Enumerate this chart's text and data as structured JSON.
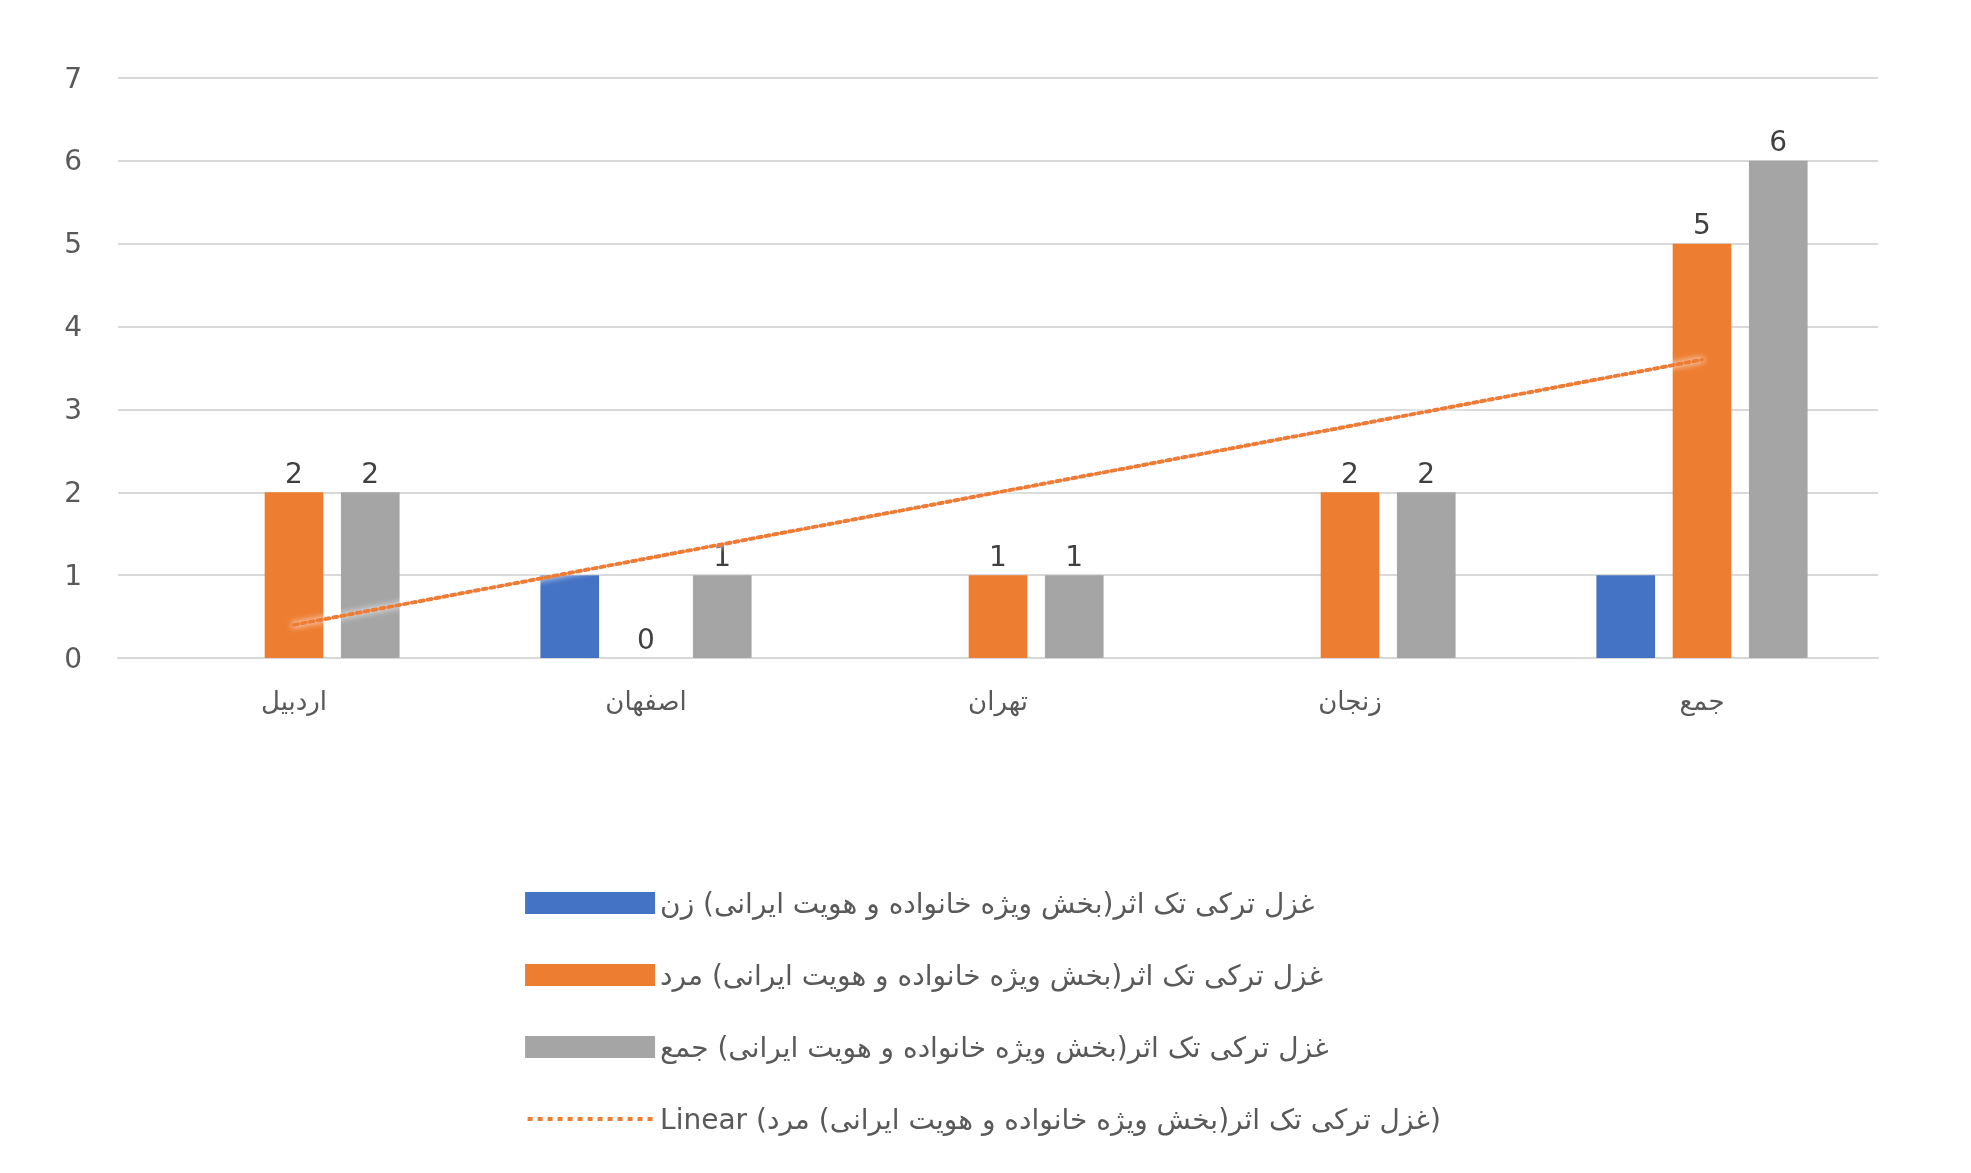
{
  "chart_data": {
    "type": "bar",
    "categories": [
      "اردبیل",
      "اصفهان",
      "تهران",
      "زنجان",
      "جمع"
    ],
    "series": [
      {
        "name": "غزل ترکی تک اثر(بخش ویژه خانواده و هویت ایرانی) زن",
        "color": "#4472c4",
        "values": [
          null,
          1,
          null,
          null,
          1
        ]
      },
      {
        "name": "غزل ترکی تک اثر(بخش ویژه خانواده و هویت ایرانی) مرد",
        "color": "#ed7d31",
        "values": [
          2,
          0,
          1,
          2,
          5
        ],
        "value_labels": [
          "2",
          "0",
          "1",
          "2",
          "5"
        ]
      },
      {
        "name": "غزل ترکی تک اثر(بخش ویژه خانواده و هویت ایرانی) جمع",
        "color": "#a5a5a5",
        "values": [
          2,
          1,
          1,
          2,
          6
        ],
        "value_labels": [
          "2",
          "1",
          "1",
          "2",
          "6"
        ]
      },
      {
        "name": "Linear (غزل ترکی تک اثر(بخش ویژه خانواده و هویت ایرانی) مرد)",
        "type": "line",
        "color": "#ed7d31",
        "line_style": "dotted",
        "marker": "none",
        "values": [
          0.4,
          1.2,
          2.0,
          2.8,
          3.6
        ]
      }
    ],
    "ylim": [
      0,
      7
    ],
    "yticks": [
      0,
      1,
      2,
      3,
      4,
      5,
      6,
      7
    ],
    "grid": "y",
    "legend": "bottom"
  }
}
